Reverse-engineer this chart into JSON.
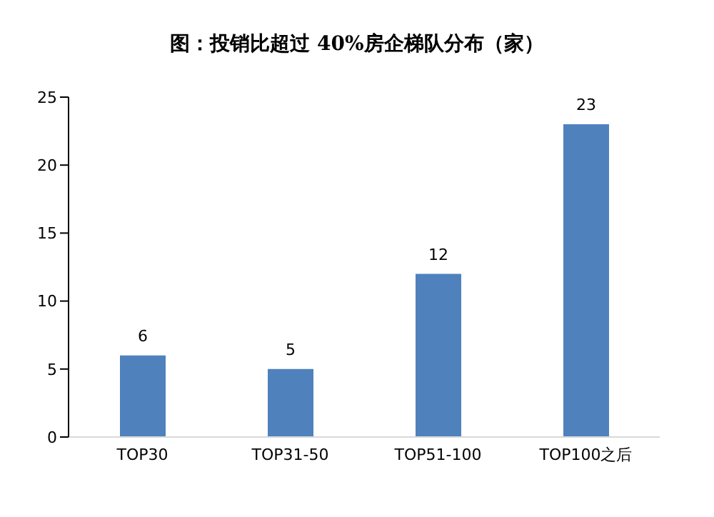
{
  "chart_data": {
    "type": "bar",
    "title": "图：投销比超过 40%房企梯队分布（家）",
    "categories": [
      "TOP30",
      "TOP31-50",
      "TOP51-100",
      "TOP100之后"
    ],
    "values": [
      6,
      5,
      12,
      23
    ],
    "color": "#4f81bd",
    "ylim": [
      0,
      25
    ],
    "yticks": [
      0,
      5,
      10,
      15,
      20,
      25
    ],
    "grid": false,
    "data_labels": true
  }
}
